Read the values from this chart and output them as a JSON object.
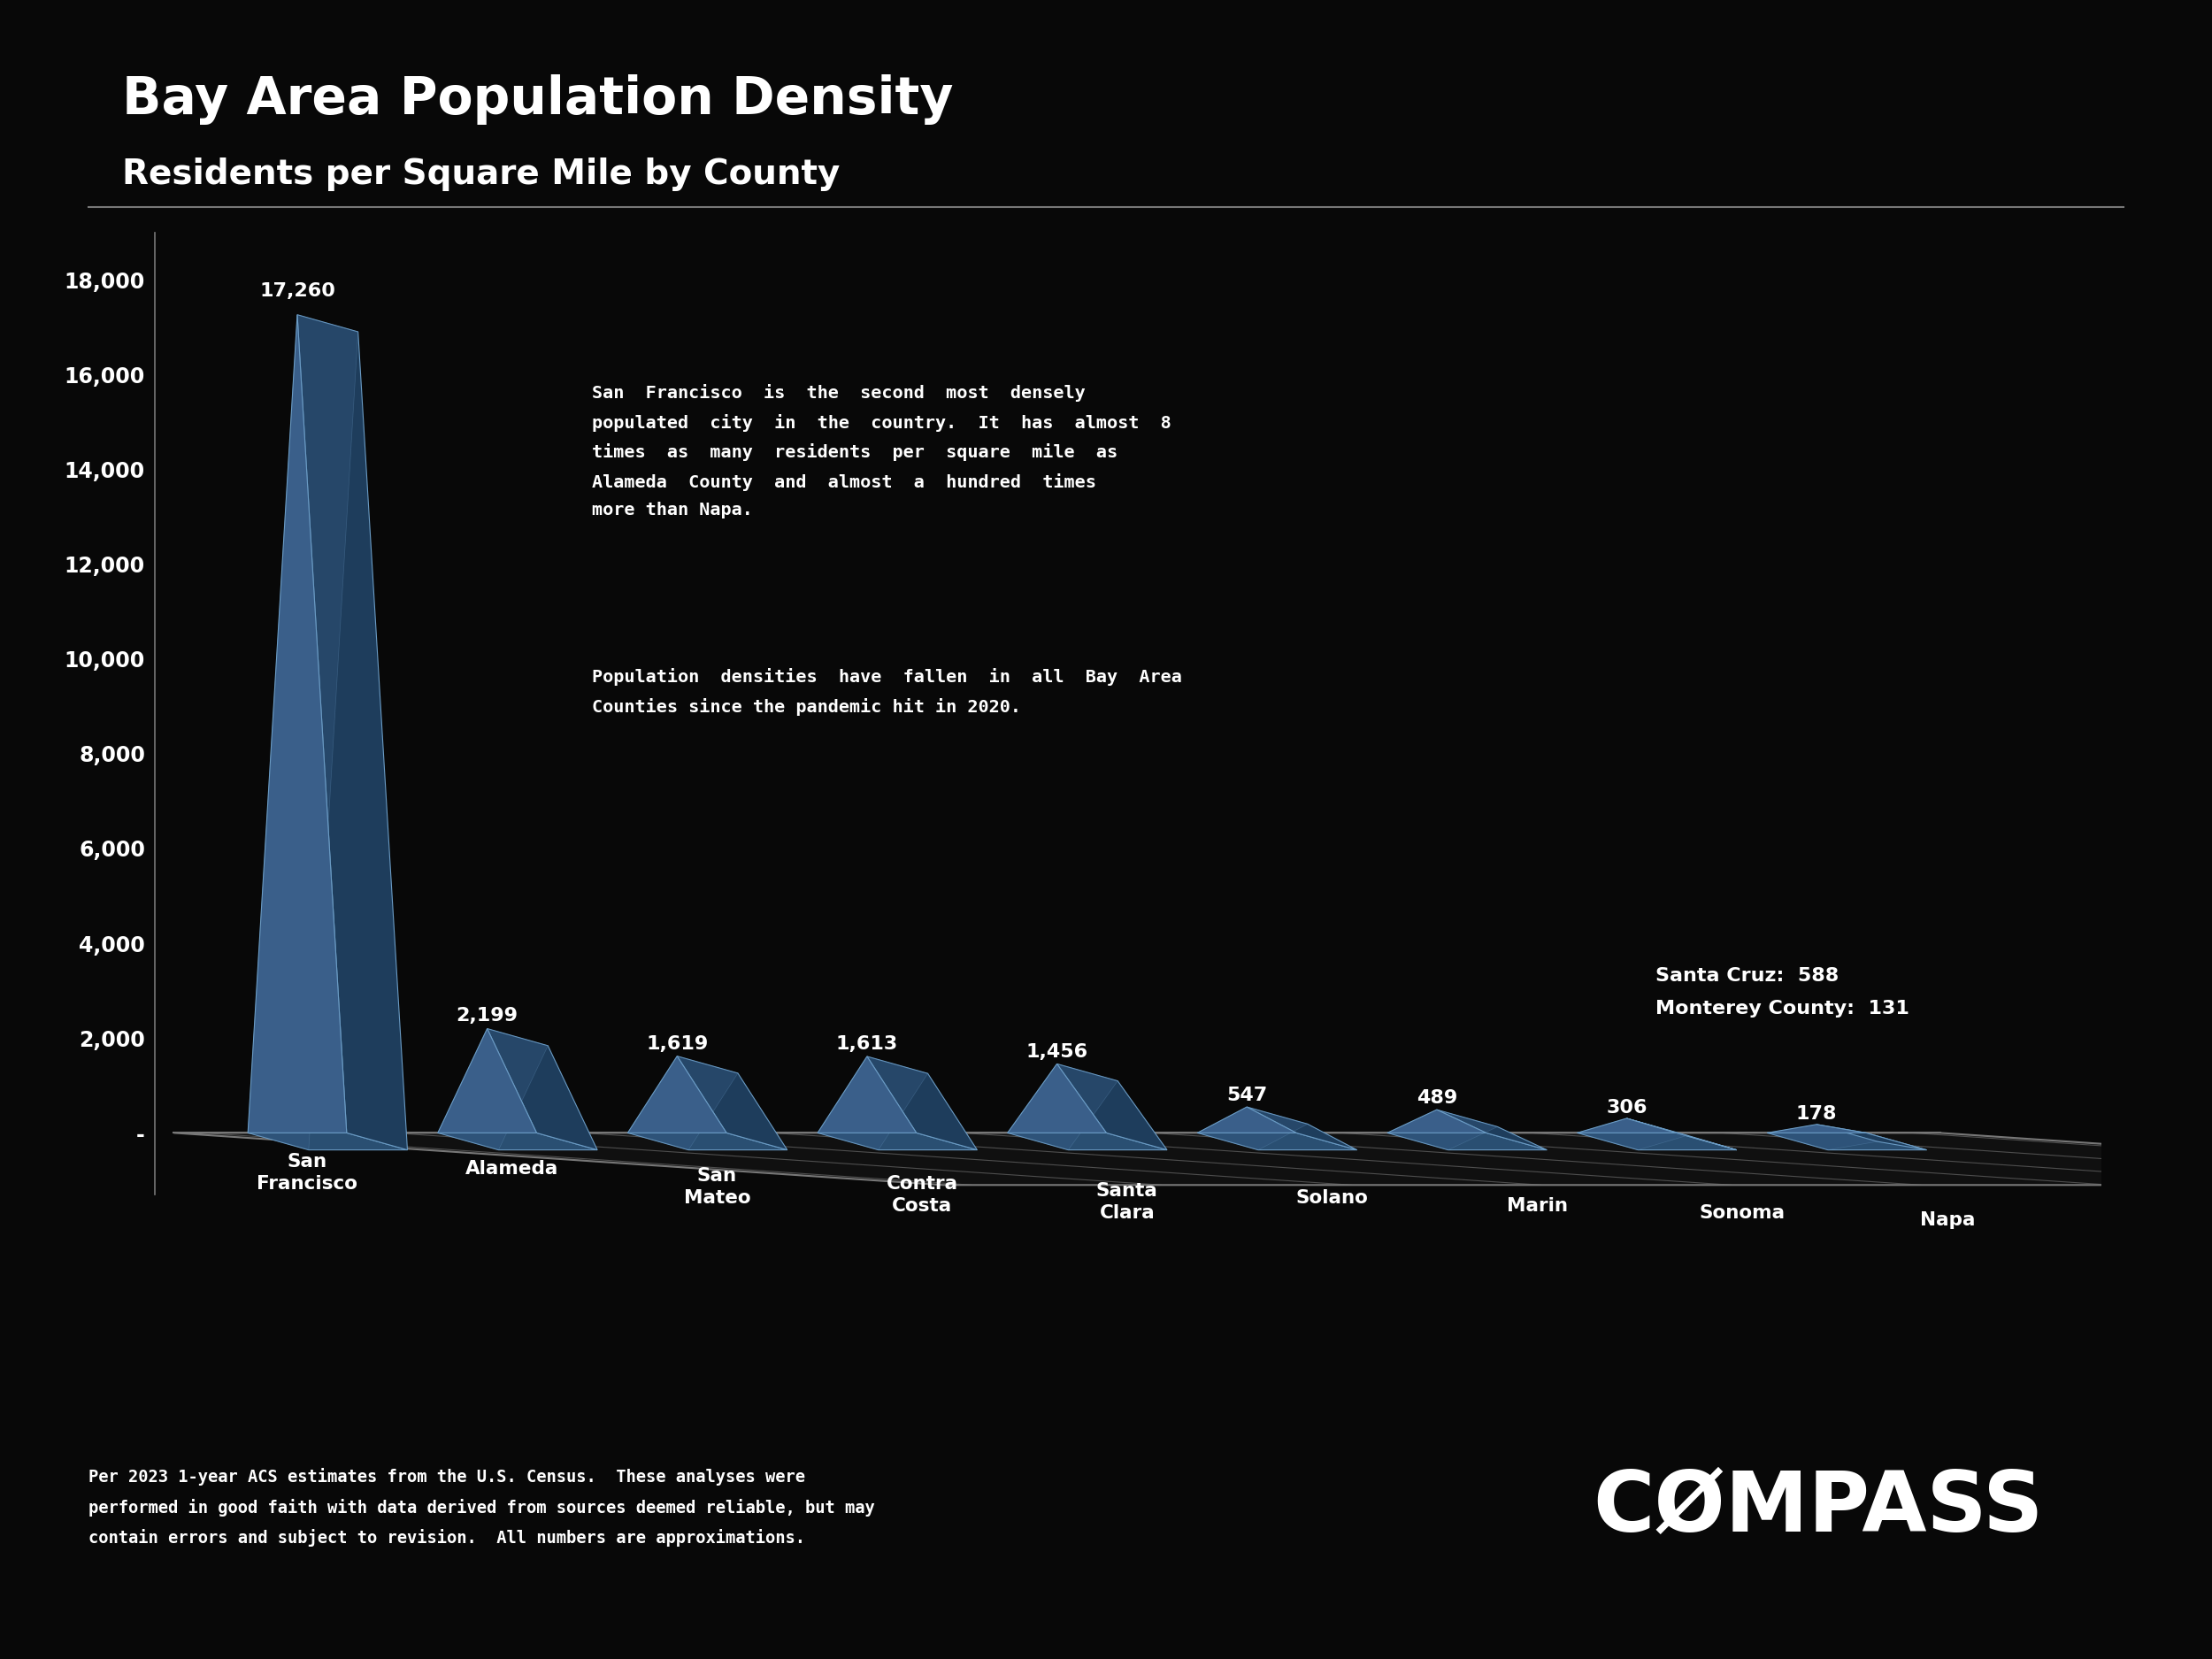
{
  "title": "Bay Area Population Density",
  "subtitle": "Residents per Square Mile by County",
  "background_color": "#080808",
  "text_color": "#ffffff",
  "counties": [
    "San\nFrancisco",
    "Alameda",
    "San\nMateo",
    "Contra\nCosta",
    "Santa\nClara",
    "Solano",
    "Marin",
    "Sonoma",
    "Napa"
  ],
  "values": [
    17260,
    2199,
    1619,
    1613,
    1456,
    547,
    489,
    306,
    178
  ],
  "value_labels": [
    "17,260",
    "2,199",
    "1,619",
    "1,613",
    "1,456",
    "547",
    "489",
    "306",
    "178"
  ],
  "pyramid_front_color": "#3a5f8a",
  "pyramid_side_color": "#1e3d5c",
  "pyramid_base_color": "#2a4f72",
  "pyramid_edge_color": "#6a9bc4",
  "floor_face_color": "#101010",
  "floor_edge_color": "#777777",
  "ylim_max": 19000,
  "yticks": [
    0,
    2000,
    4000,
    6000,
    8000,
    10000,
    12000,
    14000,
    16000,
    18000
  ],
  "ytick_labels": [
    "-",
    "2,000",
    "4,000",
    "6,000",
    "8,000",
    "10,000",
    "12,000",
    "14,000",
    "16,000",
    "18,000"
  ],
  "annotation1": "San  Francisco  is  the  second  most  densely\npopulated  city  in  the  country.  It  has  almost  8\ntimes  as  many  residents  per  square  mile  as\nAlameda  County  and  almost  a  hundred  times\nmore than Napa.",
  "annotation2": "Population  densities  have  fallen  in  all  Bay  Area\nCounties since the pandemic hit in 2020.",
  "side_annotation": "Santa Cruz:  588\nMonterey County:  131",
  "footer_text": "Per 2023 1-year ACS estimates from the U.S. Census.  These analyses were\nperformed in good faith with data derived from sources deemed reliable, but may\ncontain errors and subject to revision.  All numbers are approximations.",
  "compass_text": "CØMPASS"
}
